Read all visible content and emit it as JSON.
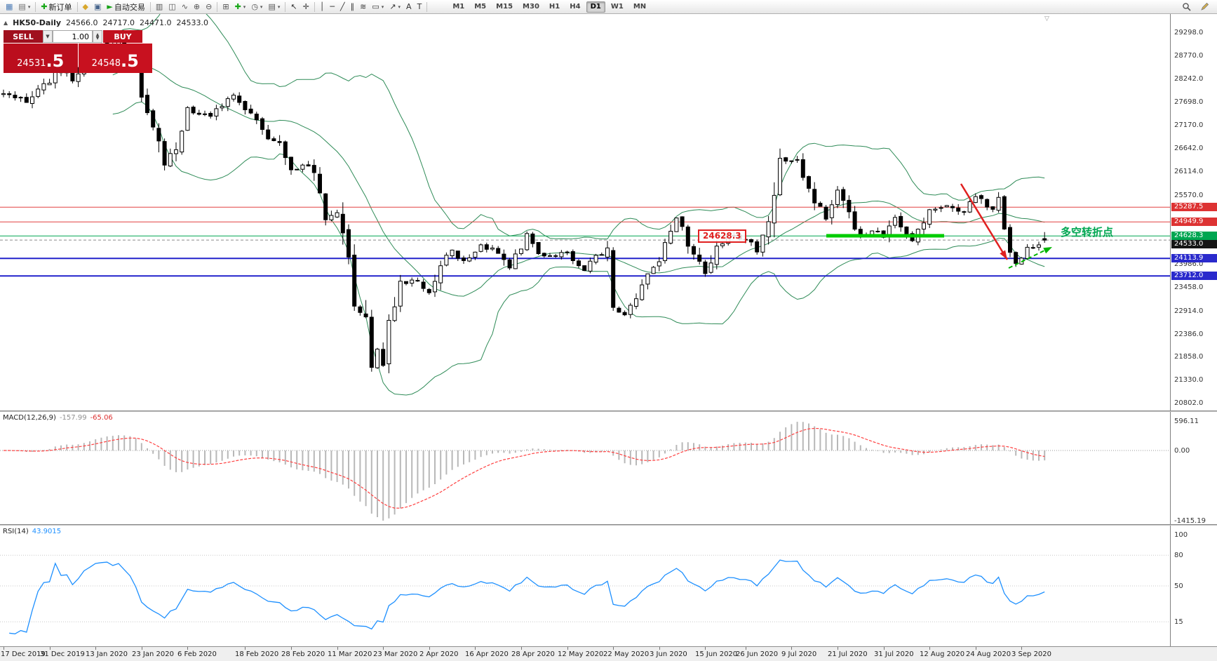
{
  "toolbar": {
    "left_items": [
      {
        "name": "new-chart-button",
        "icon": "new-chart-icon",
        "glyph": "▦",
        "color": "#4a7ab5"
      },
      {
        "name": "profiles-button",
        "icon": "profiles-icon",
        "glyph": "▤",
        "color": "#6f6f6f",
        "caret": true
      },
      {
        "sep": true
      },
      {
        "name": "new-order-button",
        "icon": "plus-icon",
        "glyph": "✚",
        "color": "#18a818",
        "label": "新订单"
      },
      {
        "sep": true
      },
      {
        "name": "metaeditor-button",
        "icon": "metaeditor-icon",
        "glyph": "◆",
        "color": "#d8a72c"
      },
      {
        "name": "terminal-button",
        "icon": "terminal-icon",
        "glyph": "▣",
        "color": "#46648c"
      },
      {
        "name": "autotrading-button",
        "icon": "play-icon",
        "glyph": "►",
        "color": "#12a112",
        "label": "自动交易"
      },
      {
        "sep": true
      },
      {
        "name": "bar-chart-button",
        "icon": "bar-chart-icon",
        "glyph": "▥",
        "color": "#555555"
      },
      {
        "name": "candlestick-chart-button",
        "icon": "candlestick-icon",
        "glyph": "◫",
        "color": "#555555"
      },
      {
        "name": "line-chart-button",
        "icon": "line-chart-icon",
        "glyph": "∿",
        "color": "#555555"
      },
      {
        "name": "zoom-in-button",
        "icon": "zoom-in-icon",
        "glyph": "⊕",
        "color": "#555555"
      },
      {
        "name": "zoom-out-button",
        "icon": "zoom-out-icon",
        "glyph": "⊖",
        "color": "#555555"
      },
      {
        "sep": true
      },
      {
        "name": "tile-windows-button",
        "icon": "tile-windows-icon",
        "glyph": "⊞",
        "color": "#555555"
      },
      {
        "name": "indicators-button",
        "icon": "indicators-icon",
        "glyph": "✚",
        "color": "#18a818",
        "caret": true
      },
      {
        "name": "periods-button",
        "icon": "clock-icon",
        "glyph": "◷",
        "color": "#555555",
        "caret": true
      },
      {
        "name": "templates-button",
        "icon": "template-icon",
        "glyph": "▤",
        "color": "#555555",
        "caret": true
      },
      {
        "sep": true
      },
      {
        "name": "cursor-button",
        "icon": "cursor-icon",
        "glyph": "↖",
        "color": "#333333"
      },
      {
        "name": "crosshair-button",
        "icon": "crosshair-icon",
        "glyph": "✛",
        "color": "#333333"
      },
      {
        "sep": true
      },
      {
        "name": "vertical-line-button",
        "icon": "vertical-line-icon",
        "glyph": "│",
        "color": "#333333"
      },
      {
        "name": "horizontal-line-button",
        "icon": "horizontal-line-icon",
        "glyph": "─",
        "color": "#333333"
      },
      {
        "name": "trendline-button",
        "icon": "trendline-icon",
        "glyph": "╱",
        "color": "#333333"
      },
      {
        "name": "channel-button",
        "icon": "channel-icon",
        "glyph": "∥",
        "color": "#333333"
      },
      {
        "name": "fibonacci-button",
        "icon": "fibonacci-icon",
        "glyph": "≋",
        "color": "#333333"
      },
      {
        "name": "shapes-button",
        "icon": "rectangle-icon",
        "glyph": "▭",
        "color": "#333333",
        "caret": true
      },
      {
        "name": "arrows-button",
        "icon": "arrow-icon",
        "glyph": "↗",
        "color": "#333333",
        "caret": true
      },
      {
        "name": "text-button",
        "icon": "text-icon",
        "glyph": "A",
        "color": "#333333"
      },
      {
        "name": "text-label-button",
        "icon": "label-icon",
        "glyph": "T",
        "color": "#333333"
      },
      {
        "sep": true
      }
    ],
    "timeframes": [
      "M1",
      "M5",
      "M15",
      "M30",
      "H1",
      "H4",
      "D1",
      "W1",
      "MN"
    ],
    "active_timeframe": "D1",
    "right_items": [
      {
        "name": "search-button",
        "icon": "search-icon",
        "shape": "magnifier"
      },
      {
        "name": "quick-edit-button",
        "icon": "pencil-icon",
        "shape": "pencil"
      }
    ]
  },
  "chart": {
    "header_icon": "▲",
    "shift_marker": "▽",
    "symbol_header": "HK50-Daily",
    "ohlc": {
      "open": "24566.0",
      "high": "24717.0",
      "low": "24471.0",
      "close": "24533.0"
    },
    "trade_panel": {
      "sell_label": "SELL",
      "buy_label": "BUY",
      "volume": "1.00",
      "sell_price_small": "24531",
      "sell_price_big": ".5",
      "buy_price_small": "24548",
      "buy_price_big": ".5"
    },
    "scale_ticks": [
      {
        "label": "29298.0",
        "price": 29298.0
      },
      {
        "label": "28770.0",
        "price": 28770.0
      },
      {
        "label": "28242.0",
        "price": 28242.0
      },
      {
        "label": "27698.0",
        "price": 27698.0
      },
      {
        "label": "27170.0",
        "price": 27170.0
      },
      {
        "label": "26642.0",
        "price": 26642.0
      },
      {
        "label": "26114.0",
        "price": 26114.0
      },
      {
        "label": "25570.0",
        "price": 25570.0
      },
      {
        "label": "23986.0",
        "price": 23986.0
      },
      {
        "label": "23458.0",
        "price": 23458.0
      },
      {
        "label": "22914.0",
        "price": 22914.0
      },
      {
        "label": "22386.0",
        "price": 22386.0
      },
      {
        "label": "21858.0",
        "price": 21858.0
      },
      {
        "label": "21330.0",
        "price": 21330.0
      },
      {
        "label": "20802.0",
        "price": 20802.0
      }
    ],
    "levels": [
      {
        "price": 25287.5,
        "label": "25287.5",
        "color": "#e24040",
        "label_bg": "#dd3333",
        "width": 1
      },
      {
        "price": 24949.9,
        "label": "24949.9",
        "color": "#e24040",
        "label_bg": "#dd3333",
        "width": 1
      },
      {
        "price": 24628.3,
        "label": "24628.3",
        "color": "#00a651",
        "label_bg": "#00a651",
        "width": 1
      },
      {
        "price": 24113.9,
        "label": "24113.9",
        "color": "#2222cc",
        "label_bg": "#2a2acc",
        "width": 2
      },
      {
        "price": 23712.0,
        "label": "23712.0",
        "color": "#2222cc",
        "label_bg": "#2a2acc",
        "width": 2
      }
    ],
    "current_price": {
      "label": "24533.0",
      "price": 24533.0,
      "label_bg": "#151515"
    },
    "annotations": {
      "support_callout": "24628.3",
      "turning_point_label": "多空转折点"
    },
    "drawing_colors": {
      "support_bar": "#00cc00",
      "down_arrow": "#e02020",
      "up_arrow": "#00b400",
      "bollinger": "#2e8b57"
    }
  },
  "macd": {
    "title": "MACD(12,26,9)",
    "value_main": "-157.99",
    "value_signal": "-65.06",
    "axis_labels": [
      {
        "label": "596.11",
        "value": 596.11
      },
      {
        "label": "0.00",
        "value": 0
      },
      {
        "label": "-1415.19",
        "value": -1415.19
      }
    ],
    "histogram_color": "#b8b8b8",
    "signal_color": "#ff4040"
  },
  "rsi": {
    "title": "RSI(14)",
    "value": "43.9015",
    "axis_labels": [
      {
        "label": "100",
        "value": 100
      },
      {
        "label": "80",
        "value": 80
      },
      {
        "label": "50",
        "value": 50
      },
      {
        "label": "15",
        "value": 15
      }
    ],
    "levels": [
      80,
      50,
      15
    ],
    "line_color": "#1e90ff"
  },
  "date_axis": [
    {
      "label": "17 Dec 2019",
      "i": 0
    },
    {
      "label": "31 Dec 2019",
      "i": 8
    },
    {
      "label": "13 Jan 2020",
      "i": 16
    },
    {
      "label": "23 Jan 2020",
      "i": 24
    },
    {
      "label": "6 Feb 2020",
      "i": 32
    },
    {
      "label": "18 Feb 2020",
      "i": 42
    },
    {
      "label": "28 Feb 2020",
      "i": 50
    },
    {
      "label": "11 Mar 2020",
      "i": 58
    },
    {
      "label": "23 Mar 2020",
      "i": 66
    },
    {
      "label": "2 Apr 2020",
      "i": 74
    },
    {
      "label": "16 Apr 2020",
      "i": 82
    },
    {
      "label": "28 Apr 2020",
      "i": 90
    },
    {
      "label": "12 May 2020",
      "i": 98
    },
    {
      "label": "22 May 2020",
      "i": 106
    },
    {
      "label": "3 Jun 2020",
      "i": 114
    },
    {
      "label": "15 Jun 2020",
      "i": 122
    },
    {
      "label": "26 Jun 2020",
      "i": 129
    },
    {
      "label": "9 Jul 2020",
      "i": 137
    },
    {
      "label": "21 Jul 2020",
      "i": 145
    },
    {
      "label": "31 Jul 2020",
      "i": 153
    },
    {
      "label": "12 Aug 2020",
      "i": 161
    },
    {
      "label": "24 Aug 2020",
      "i": 169
    },
    {
      "label": "3 Sep 2020",
      "i": 177
    }
  ],
  "chart_data": {
    "type": "candlestick",
    "symbol": "HK50",
    "timeframe": "D1",
    "visible_range": {
      "price_max": 29298,
      "price_min": 20802
    },
    "last_ohlc": {
      "open": 24566.0,
      "high": 24717.0,
      "low": 24471.0,
      "close": 24533.0
    },
    "n_candles": 182,
    "close_anchors": [
      [
        0,
        27880
      ],
      [
        4,
        27740
      ],
      [
        8,
        28189
      ],
      [
        9,
        28543
      ],
      [
        12,
        28226
      ],
      [
        16,
        28954
      ],
      [
        20,
        29056
      ],
      [
        22,
        28883
      ],
      [
        24,
        27909
      ],
      [
        26,
        27160
      ],
      [
        28,
        26312
      ],
      [
        30,
        26675
      ],
      [
        32,
        27493
      ],
      [
        36,
        27404
      ],
      [
        40,
        27815
      ],
      [
        42,
        27530
      ],
      [
        44,
        27309
      ],
      [
        46,
        26820
      ],
      [
        48,
        26778
      ],
      [
        50,
        26129
      ],
      [
        52,
        26222
      ],
      [
        54,
        26146
      ],
      [
        56,
        25040
      ],
      [
        58,
        25231
      ],
      [
        60,
        24032
      ],
      [
        61,
        23063
      ],
      [
        63,
        22805
      ],
      [
        64,
        21709
      ],
      [
        65,
        22044
      ],
      [
        66,
        21696
      ],
      [
        67,
        22663
      ],
      [
        69,
        23527
      ],
      [
        72,
        23603
      ],
      [
        74,
        23280
      ],
      [
        76,
        23970
      ],
      [
        78,
        24300
      ],
      [
        80,
        24046
      ],
      [
        83,
        24380
      ],
      [
        86,
        24276
      ],
      [
        88,
        23893
      ],
      [
        91,
        24644
      ],
      [
        93,
        24230
      ],
      [
        95,
        24137
      ],
      [
        98,
        24245
      ],
      [
        101,
        23797
      ],
      [
        103,
        24180
      ],
      [
        105,
        24280
      ],
      [
        106,
        22930
      ],
      [
        108,
        22835
      ],
      [
        110,
        23133
      ],
      [
        112,
        23732
      ],
      [
        114,
        23995
      ],
      [
        116,
        24770
      ],
      [
        117,
        25057
      ],
      [
        119,
        24480
      ],
      [
        122,
        23776
      ],
      [
        124,
        24313
      ],
      [
        126,
        24643
      ],
      [
        129,
        24550
      ],
      [
        131,
        24301
      ],
      [
        133,
        24883
      ],
      [
        134,
        25373
      ],
      [
        135,
        26339
      ],
      [
        138,
        26309
      ],
      [
        140,
        25727
      ],
      [
        141,
        25477
      ],
      [
        143,
        24971
      ],
      [
        145,
        25635
      ],
      [
        147,
        25128
      ],
      [
        149,
        24603
      ],
      [
        151,
        24772
      ],
      [
        153,
        24595
      ],
      [
        155,
        25015
      ],
      [
        158,
        24531
      ],
      [
        160,
        24890
      ],
      [
        161,
        25244
      ],
      [
        164,
        25347
      ],
      [
        167,
        25178
      ],
      [
        169,
        25551
      ],
      [
        171,
        25321
      ],
      [
        172,
        25281
      ],
      [
        173,
        25422
      ],
      [
        174,
        24800
      ],
      [
        175,
        24250
      ],
      [
        176,
        23990
      ],
      [
        178,
        24350
      ],
      [
        180,
        24450
      ],
      [
        181,
        24533
      ]
    ],
    "indicators": [
      "Bollinger Bands(20,2)",
      "MACD(12,26,9)",
      "RSI(14)"
    ],
    "bollinger": {
      "period": 20,
      "deviation": 2
    },
    "macd": {
      "fast": 12,
      "slow": 26,
      "signal": 9,
      "last_values": [
        -157.99,
        -65.06
      ],
      "axis_range": [
        596.11,
        -1415.19
      ]
    },
    "rsi": {
      "period": 14,
      "last_value": 43.9015
    }
  }
}
